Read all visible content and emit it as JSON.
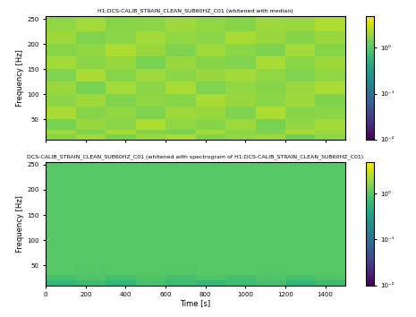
{
  "chart_data": [
    {
      "type": "heatmap",
      "title": "H1:DCS-CALIB_STRAIN_CLEAN_SUB60HZ_C01 (whitened with median)",
      "y_label": "Frequency [Hz]",
      "tick_labels": "y",
      "color": "viridis",
      "x_bins": [
        0,
        150,
        300,
        450,
        600,
        750,
        900,
        1050,
        1200,
        1350,
        1500
      ],
      "y_bins": [
        10,
        20,
        30,
        50,
        75,
        100,
        125,
        150,
        175,
        200,
        225,
        256
      ],
      "cells": [
        [
          1.6,
          2.1,
          1.4,
          1.9,
          2.3,
          1.5,
          1.8,
          2.0,
          1.3,
          1.7
        ],
        [
          2.0,
          1.5,
          2.2,
          1.6,
          1.4,
          2.1,
          1.7,
          1.5,
          2.2,
          1.9
        ],
        [
          1.4,
          1.9,
          1.7,
          2.3,
          1.8,
          1.6,
          2.0,
          1.4,
          1.8,
          2.1
        ],
        [
          2.2,
          1.6,
          1.8,
          1.5,
          2.0,
          1.9,
          1.5,
          2.3,
          1.6,
          1.7
        ],
        [
          1.7,
          2.0,
          1.5,
          1.8,
          1.6,
          2.2,
          1.9,
          1.7,
          2.0,
          1.5
        ],
        [
          1.9,
          1.4,
          2.1,
          1.7,
          2.2,
          1.5,
          1.8,
          1.6,
          1.9,
          2.2
        ],
        [
          1.5,
          2.2,
          1.6,
          2.0,
          1.7,
          1.9,
          2.1,
          1.8,
          1.5,
          1.8
        ],
        [
          2.1,
          1.7,
          1.9,
          1.4,
          1.9,
          1.6,
          1.5,
          2.2,
          1.7,
          2.0
        ],
        [
          1.6,
          1.8,
          2.3,
          1.9,
          1.5,
          2.0,
          1.7,
          1.5,
          2.1,
          1.6
        ],
        [
          2.0,
          1.5,
          1.7,
          2.1,
          1.8,
          1.7,
          2.2,
          1.9,
          1.6,
          1.9
        ],
        [
          1.8,
          2.1,
          1.6,
          1.7,
          2.0,
          1.8,
          1.6,
          2.0,
          1.9,
          2.3
        ]
      ],
      "colorbar": {
        "range": [
          0.01,
          5
        ],
        "ticks": [
          {
            "value": 0.01,
            "label": "10⁻²"
          },
          {
            "value": 0.1,
            "label": "10⁻¹"
          },
          {
            "value": 1,
            "label": "10⁰"
          }
        ]
      },
      "xlim": [
        0,
        1500
      ],
      "xticks": [
        0,
        200,
        400,
        600,
        800,
        1000,
        1200,
        1400
      ],
      "ylim": [
        10,
        256
      ],
      "yticks": [
        50,
        100,
        150,
        200,
        250
      ]
    },
    {
      "type": "heatmap",
      "title": "DCS-CALIB_STRAIN_CLEAN_SUB60HZ_C01 (whitened with spectrogram of H1:DCS-CALIB_STRAIN_CLEAN_SUB60HZ_C01)",
      "x_label": "Time [s]",
      "y_label": "Frequency [Hz]",
      "color": "viridis",
      "x_bins": [
        0,
        150,
        300,
        450,
        600,
        750,
        900,
        1050,
        1200,
        1350,
        1500
      ],
      "y_bins": [
        10,
        20,
        30,
        50,
        75,
        100,
        125,
        150,
        175,
        200,
        225,
        256
      ],
      "cells": [
        [
          0.6,
          0.7,
          0.6,
          0.8,
          0.7,
          0.6,
          0.7,
          0.8,
          0.6,
          0.7
        ],
        [
          0.8,
          0.9,
          0.8,
          0.9,
          0.8,
          0.9,
          0.8,
          0.9,
          0.8,
          0.9
        ],
        [
          1.0,
          0.95,
          1.0,
          1.0,
          0.95,
          1.0,
          1.0,
          0.95,
          1.0,
          1.0
        ],
        [
          1.0,
          1.0,
          1.0,
          1.0,
          1.0,
          1.0,
          1.0,
          1.0,
          1.0,
          1.0
        ],
        [
          1.0,
          1.0,
          1.0,
          1.0,
          1.0,
          1.0,
          1.0,
          1.0,
          1.0,
          1.0
        ],
        [
          1.0,
          1.0,
          1.0,
          1.0,
          1.0,
          1.0,
          1.0,
          1.0,
          1.0,
          1.0
        ],
        [
          1.0,
          1.0,
          1.0,
          1.0,
          1.0,
          1.0,
          1.0,
          1.0,
          1.0,
          1.0
        ],
        [
          1.0,
          1.0,
          1.0,
          1.0,
          1.0,
          1.0,
          1.0,
          1.0,
          1.0,
          1.0
        ],
        [
          1.0,
          1.0,
          1.0,
          1.0,
          1.0,
          1.0,
          1.0,
          1.0,
          1.0,
          1.0
        ],
        [
          1.0,
          1.0,
          1.0,
          1.0,
          1.0,
          1.0,
          1.0,
          1.0,
          1.0,
          1.0
        ],
        [
          1.0,
          1.0,
          1.0,
          1.0,
          1.0,
          1.0,
          1.0,
          1.0,
          1.0,
          1.0
        ]
      ],
      "colorbar": {
        "range": [
          0.01,
          5
        ],
        "ticks": [
          {
            "value": 0.01,
            "label": "10⁻²"
          },
          {
            "value": 0.1,
            "label": "10⁻¹"
          },
          {
            "value": 1,
            "label": "10⁰"
          }
        ]
      },
      "xlim": [
        0,
        1500
      ],
      "xticks": [
        0,
        200,
        400,
        600,
        800,
        1000,
        1200,
        1400
      ],
      "ylim": [
        10,
        256
      ],
      "yticks": [
        50,
        100,
        150,
        200,
        250
      ]
    }
  ]
}
